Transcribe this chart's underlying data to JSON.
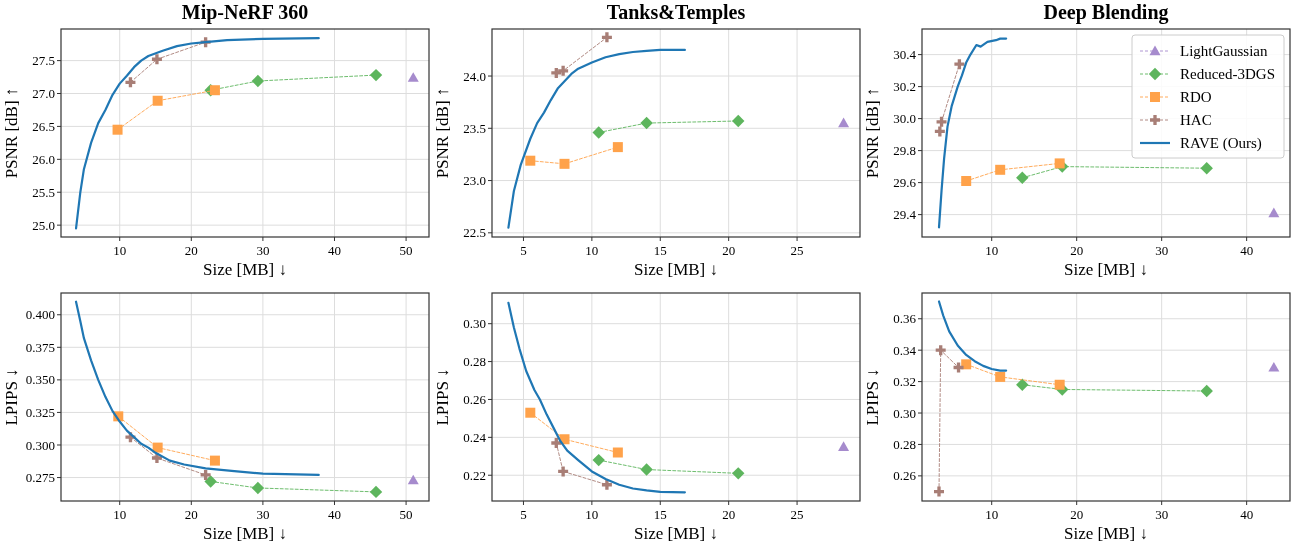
{
  "chart_data": [
    {
      "type": "line",
      "title": "Mip-NeRF 360",
      "xlabel": "Size [MB] ↓",
      "ylabel": "PSNR [dB] ↑",
      "xlim": [
        1.8,
        53.2
      ],
      "xticks": [
        10,
        20,
        30,
        40,
        50
      ],
      "ylim": [
        24.82,
        27.98
      ],
      "yticks": [
        {
          "value": 25,
          "label": "25.0"
        },
        25.5,
        {
          "value": 26,
          "label": "26.0"
        },
        26.5,
        {
          "value": 27,
          "label": "27.0"
        },
        27.5
      ],
      "grid": true,
      "legend": false,
      "series": [
        {
          "color": "#a68bcd",
          "marker": "triangle",
          "line_style": "dashed",
          "x": [
            51
          ],
          "values": [
            27.24
          ]
        },
        {
          "color": "#5db55d",
          "marker": "diamond",
          "line_style": "dashed",
          "x": [
            22.7,
            29.3,
            45.8
          ],
          "values": [
            27.05,
            27.19,
            27.28
          ]
        },
        {
          "color": "#ffa24a",
          "marker": "square",
          "line_style": "dashed",
          "x": [
            9.7,
            15.3,
            23.3
          ],
          "values": [
            26.45,
            26.89,
            27.05
          ]
        },
        {
          "color": "#a87e76",
          "marker": "cross",
          "line_style": "dashed",
          "x": [
            11.5,
            15.2,
            22
          ],
          "values": [
            27.17,
            27.52,
            27.78
          ]
        },
        {
          "color": "#1f77b4",
          "marker": "none",
          "line_style": "solid",
          "x": [
            3.9,
            4.5,
            5,
            6,
            7,
            8,
            9,
            10,
            11,
            12,
            13,
            14,
            16,
            18,
            20,
            22,
            25,
            30,
            37.8
          ],
          "values": [
            24.95,
            25.5,
            25.85,
            26.25,
            26.55,
            26.75,
            26.98,
            27.15,
            27.27,
            27.4,
            27.5,
            27.57,
            27.65,
            27.72,
            27.76,
            27.78,
            27.81,
            27.83,
            27.84
          ]
        }
      ]
    },
    {
      "type": "line",
      "title": "Tanks&Temples",
      "xlabel": "Size [MB] ↓",
      "ylabel": "PSNR [dB] ↑",
      "xlim": [
        2.7,
        29.6
      ],
      "xticks": [
        5,
        10,
        15,
        20,
        25
      ],
      "ylim": [
        22.46,
        24.45
      ],
      "yticks": [
        22.5,
        {
          "value": 23,
          "label": "23.0"
        },
        23.5,
        {
          "value": 24,
          "label": "24.0"
        }
      ],
      "grid": true,
      "legend": false,
      "series": [
        {
          "color": "#a68bcd",
          "marker": "triangle",
          "line_style": "dashed",
          "x": [
            28.4
          ],
          "values": [
            23.55
          ]
        },
        {
          "color": "#5db55d",
          "marker": "diamond",
          "line_style": "dashed",
          "x": [
            10.5,
            14,
            20.7
          ],
          "values": [
            23.46,
            23.55,
            23.57
          ]
        },
        {
          "color": "#ffa24a",
          "marker": "square",
          "line_style": "dashed",
          "x": [
            5.5,
            8,
            11.9
          ],
          "values": [
            23.19,
            23.16,
            23.32
          ]
        },
        {
          "color": "#a87e76",
          "marker": "cross",
          "line_style": "dashed",
          "x": [
            7.4,
            7.9,
            11.1
          ],
          "values": [
            24.03,
            24.05,
            24.37
          ]
        },
        {
          "color": "#1f77b4",
          "marker": "none",
          "line_style": "solid",
          "x": [
            3.9,
            4.3,
            4.8,
            5.5,
            6,
            6.5,
            7,
            7.5,
            8,
            8.5,
            9,
            10,
            11,
            12,
            13,
            14,
            15,
            16.8
          ],
          "values": [
            22.55,
            22.9,
            23.15,
            23.4,
            23.55,
            23.65,
            23.77,
            23.88,
            23.95,
            24.02,
            24.07,
            24.13,
            24.18,
            24.21,
            24.23,
            24.24,
            24.25,
            24.25
          ]
        }
      ]
    },
    {
      "type": "line",
      "title": "Deep Blending",
      "xlabel": "Size [MB] ↓",
      "ylabel": "PSNR [dB] ↑",
      "xlim": [
        1.8,
        45.1
      ],
      "xticks": [
        10,
        20,
        30,
        40
      ],
      "ylim": [
        29.26,
        30.56
      ],
      "yticks": [
        29.4,
        29.6,
        29.8,
        {
          "value": 30,
          "label": "30.0"
        },
        30.2,
        30.4
      ],
      "grid": true,
      "legend": "top right",
      "series": [
        {
          "name": "LightGaussian",
          "color": "#a68bcd",
          "marker": "triangle",
          "line_style": "dashed",
          "x": [
            43.2
          ],
          "values": [
            29.41
          ]
        },
        {
          "name": "Reduced-3DGS",
          "color": "#5db55d",
          "marker": "diamond",
          "line_style": "dashed",
          "x": [
            13.6,
            18.3,
            35.3
          ],
          "values": [
            29.63,
            29.7,
            29.69
          ]
        },
        {
          "name": "RDO",
          "color": "#ffa24a",
          "marker": "square",
          "line_style": "dashed",
          "x": [
            7,
            11,
            18
          ],
          "values": [
            29.61,
            29.68,
            29.72
          ]
        },
        {
          "name": "HAC",
          "color": "#a87e76",
          "marker": "cross",
          "line_style": "dashed",
          "x": [
            3.9,
            4.1,
            6.2
          ],
          "values": [
            29.92,
            29.98,
            30.34
          ]
        },
        {
          "name": "RAVE (Ours)",
          "color": "#1f77b4",
          "marker": "none",
          "line_style": "solid",
          "x": [
            3.8,
            4.1,
            4.4,
            4.8,
            5.3,
            6,
            6.5,
            7,
            7.5,
            8.2,
            8.7,
            9.5,
            10.5,
            11,
            11.7
          ],
          "values": [
            29.32,
            29.55,
            29.75,
            29.95,
            30.08,
            30.2,
            30.27,
            30.35,
            30.4,
            30.46,
            30.45,
            30.48,
            30.49,
            30.5,
            30.5
          ]
        }
      ]
    },
    {
      "type": "line",
      "xlabel": "Size [MB] ↓",
      "ylabel": "LPIPS ↓",
      "xlim": [
        1.8,
        53.2
      ],
      "xticks": [
        10,
        20,
        30,
        40,
        50
      ],
      "ylim": [
        0.257,
        0.4167
      ],
      "yticks": [
        {
          "value": 0.275,
          "label": "0.275"
        },
        {
          "value": 0.3,
          "label": "0.300"
        },
        {
          "value": 0.325,
          "label": "0.325"
        },
        {
          "value": 0.35,
          "label": "0.350"
        },
        {
          "value": 0.375,
          "label": "0.375"
        },
        {
          "value": 0.4,
          "label": "0.400"
        }
      ],
      "grid": true,
      "legend": false,
      "series": [
        {
          "color": "#a68bcd",
          "marker": "triangle",
          "line_style": "dashed",
          "x": [
            51
          ],
          "values": [
            0.273
          ]
        },
        {
          "color": "#5db55d",
          "marker": "diamond",
          "line_style": "dashed",
          "x": [
            22.7,
            29.3,
            45.8
          ],
          "values": [
            0.272,
            0.267,
            0.264
          ]
        },
        {
          "color": "#ffa24a",
          "marker": "square",
          "line_style": "dashed",
          "x": [
            9.8,
            15.3,
            23.3
          ],
          "values": [
            0.322,
            0.298,
            0.288
          ]
        },
        {
          "color": "#a87e76",
          "marker": "cross",
          "line_style": "dashed",
          "x": [
            11.5,
            15.2,
            22
          ],
          "values": [
            0.306,
            0.29,
            0.277
          ]
        },
        {
          "color": "#1f77b4",
          "marker": "none",
          "line_style": "solid",
          "x": [
            3.9,
            4.5,
            5,
            6,
            7,
            8,
            9,
            10,
            11,
            12,
            13,
            14,
            15,
            17,
            19,
            22,
            26,
            30,
            37.8
          ],
          "values": [
            0.41,
            0.395,
            0.382,
            0.365,
            0.35,
            0.337,
            0.326,
            0.318,
            0.311,
            0.306,
            0.301,
            0.298,
            0.294,
            0.288,
            0.285,
            0.282,
            0.28,
            0.278,
            0.277
          ]
        }
      ]
    },
    {
      "type": "line",
      "xlabel": "Size [MB] ↓",
      "ylabel": "LPIPS ↓",
      "xlim": [
        2.7,
        29.6
      ],
      "xticks": [
        5,
        10,
        15,
        20,
        25
      ],
      "ylim": [
        0.2064,
        0.3162
      ],
      "yticks": [
        {
          "value": 0.22,
          "label": "0.22"
        },
        {
          "value": 0.24,
          "label": "0.24"
        },
        {
          "value": 0.26,
          "label": "0.26"
        },
        {
          "value": 0.28,
          "label": "0.28"
        },
        {
          "value": 0.3,
          "label": "0.30"
        }
      ],
      "grid": true,
      "legend": false,
      "series": [
        {
          "color": "#a68bcd",
          "marker": "triangle",
          "line_style": "dashed",
          "x": [
            28.4
          ],
          "values": [
            0.235
          ]
        },
        {
          "color": "#5db55d",
          "marker": "diamond",
          "line_style": "dashed",
          "x": [
            10.5,
            14,
            20.7
          ],
          "values": [
            0.228,
            0.223,
            0.221
          ]
        },
        {
          "color": "#ffa24a",
          "marker": "square",
          "line_style": "dashed",
          "x": [
            5.5,
            8,
            11.9
          ],
          "values": [
            0.253,
            0.239,
            0.232
          ]
        },
        {
          "color": "#a87e76",
          "marker": "cross",
          "line_style": "dashed",
          "x": [
            7.4,
            7.9,
            11.1
          ],
          "values": [
            0.237,
            0.222,
            0.215
          ]
        },
        {
          "color": "#1f77b4",
          "marker": "none",
          "line_style": "solid",
          "x": [
            3.9,
            4.3,
            4.7,
            5.2,
            5.8,
            6.2,
            6.7,
            7.2,
            7.7,
            8.2,
            9,
            10,
            11,
            12,
            13,
            14,
            15,
            16.8
          ],
          "values": [
            0.311,
            0.298,
            0.287,
            0.275,
            0.265,
            0.26,
            0.252,
            0.245,
            0.238,
            0.233,
            0.228,
            0.222,
            0.218,
            0.215,
            0.213,
            0.212,
            0.2112,
            0.211
          ]
        }
      ]
    },
    {
      "type": "line",
      "xlabel": "Size [MB] ↓",
      "ylabel": "LPIPS ↓",
      "xlim": [
        1.8,
        45.1
      ],
      "xticks": [
        10,
        20,
        30,
        40
      ],
      "ylim": [
        0.244,
        0.3764
      ],
      "yticks": [
        {
          "value": 0.26,
          "label": "0.26"
        },
        {
          "value": 0.28,
          "label": "0.28"
        },
        {
          "value": 0.3,
          "label": "0.30"
        },
        {
          "value": 0.32,
          "label": "0.32"
        },
        {
          "value": 0.34,
          "label": "0.34"
        },
        {
          "value": 0.36,
          "label": "0.36"
        }
      ],
      "grid": true,
      "legend": false,
      "series": [
        {
          "color": "#a68bcd",
          "marker": "triangle",
          "line_style": "dashed",
          "x": [
            43.2
          ],
          "values": [
            0.329
          ]
        },
        {
          "color": "#5db55d",
          "marker": "diamond",
          "line_style": "dashed",
          "x": [
            13.6,
            18.3,
            35.3
          ],
          "values": [
            0.318,
            0.315,
            0.314
          ]
        },
        {
          "color": "#ffa24a",
          "marker": "square",
          "line_style": "dashed",
          "x": [
            7,
            11,
            18
          ],
          "values": [
            0.331,
            0.323,
            0.318
          ]
        },
        {
          "color": "#a87e76",
          "marker": "cross",
          "line_style": "dashed",
          "x": [
            3.8,
            4,
            6.1
          ],
          "values": [
            0.25,
            0.34,
            0.329
          ]
        },
        {
          "color": "#1f77b4",
          "marker": "none",
          "line_style": "solid",
          "x": [
            3.8,
            4.3,
            5,
            6,
            7,
            8,
            9,
            10,
            11,
            11.7
          ],
          "values": [
            0.371,
            0.362,
            0.352,
            0.343,
            0.337,
            0.333,
            0.33,
            0.328,
            0.327,
            0.327
          ]
        }
      ]
    }
  ]
}
